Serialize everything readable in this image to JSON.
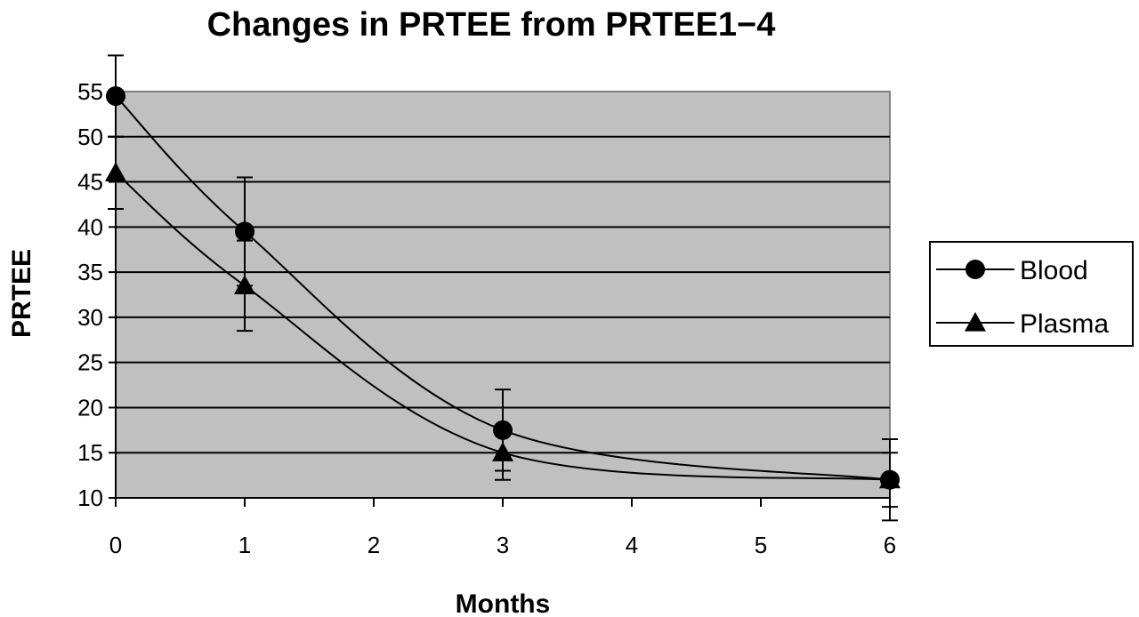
{
  "chart_data": {
    "type": "line",
    "title": "Changes in PRTEE from PRTEE1−4",
    "xlabel": "Months",
    "ylabel": "PRTEE",
    "xlim": [
      0,
      6
    ],
    "ylim": [
      10,
      55
    ],
    "xticks": [
      0,
      1,
      2,
      3,
      4,
      5,
      6
    ],
    "yticks": [
      10,
      15,
      20,
      25,
      30,
      35,
      40,
      45,
      50,
      55
    ],
    "grid": "horizontal",
    "plot_background": "#c0c0c0",
    "legend_position": "right",
    "smoothed": true,
    "series": [
      {
        "name": "Blood",
        "marker": "circle",
        "x": [
          0,
          1,
          3,
          6
        ],
        "y": [
          54.5,
          39.5,
          17.5,
          12
        ],
        "error": [
          4.5,
          6,
          4.5,
          4.5
        ]
      },
      {
        "name": "Plasma",
        "marker": "triangle",
        "x": [
          0,
          1,
          3,
          6
        ],
        "y": [
          46,
          33.5,
          15,
          12
        ],
        "error": [
          4,
          5,
          3,
          3
        ]
      }
    ]
  }
}
